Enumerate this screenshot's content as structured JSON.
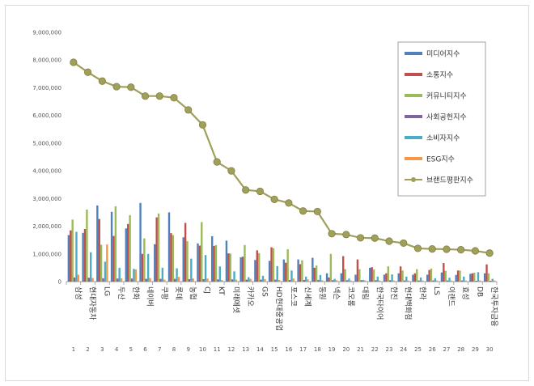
{
  "chart_data": {
    "type": "bar",
    "ylim": [
      0,
      9000000
    ],
    "yticks": [
      "9,000,000",
      "8,000,000",
      "7,000,000",
      "6,000,000",
      "5,000,000",
      "4,000,000",
      "3,000,000",
      "2,000,000",
      "1,000,000",
      "0"
    ],
    "grid": false,
    "legend_position": "top-right",
    "categories": [
      "삼성",
      "현대자동차",
      "LG",
      "두산",
      "한화",
      "네이버",
      "쿠팡",
      "롯데",
      "농협",
      "CJ",
      "KT",
      "미래에셋",
      "카카오",
      "GS",
      "HD현대중공업",
      "포스코",
      "신세계",
      "동원",
      "넥슨",
      "코오롱",
      "대림",
      "한국타이어",
      "한진",
      "현대백화점",
      "한라",
      "LS",
      "이랜드",
      "효성",
      "DB",
      "한국투자금융"
    ],
    "ranks": [
      "1",
      "2",
      "3",
      "4",
      "5",
      "6",
      "7",
      "8",
      "9",
      "10",
      "11",
      "12",
      "13",
      "14",
      "15",
      "16",
      "17",
      "18",
      "19",
      "20",
      "21",
      "22",
      "23",
      "24",
      "25",
      "26",
      "27",
      "28",
      "29",
      "30"
    ],
    "series": [
      {
        "name": "미디어지수",
        "color": "#4f81bd",
        "values": [
          1680000,
          1760000,
          2750000,
          2520000,
          1920000,
          2840000,
          1350000,
          2500000,
          1600000,
          1380000,
          1640000,
          1480000,
          880000,
          780000,
          750000,
          800000,
          800000,
          860000,
          300000,
          300000,
          250000,
          500000,
          250000,
          300000,
          250000,
          250000,
          330000,
          240000,
          280000,
          300000
        ]
      },
      {
        "name": "소통지수",
        "color": "#c0504d",
        "values": [
          1850000,
          1900000,
          2260000,
          1650000,
          2080000,
          1000000,
          2320000,
          1750000,
          2120000,
          1300000,
          1290000,
          1020000,
          900000,
          1130000,
          1240000,
          680000,
          630000,
          500000,
          150000,
          920000,
          800000,
          520000,
          300000,
          550000,
          300000,
          420000,
          670000,
          400000,
          300000,
          620000
        ]
      },
      {
        "name": "커뮤니티지수",
        "color": "#9bbb59",
        "values": [
          2240000,
          2600000,
          1330000,
          2720000,
          2400000,
          1560000,
          2460000,
          1680000,
          1460000,
          2150000,
          1320000,
          1010000,
          1320000,
          1030000,
          1210000,
          1170000,
          770000,
          580000,
          1000000,
          450000,
          450000,
          440000,
          550000,
          400000,
          450000,
          470000,
          390000,
          400000,
          320000,
          300000
        ]
      },
      {
        "name": "사회공헌지수",
        "color": "#8064a2",
        "values": [
          150000,
          140000,
          120000,
          110000,
          110000,
          100000,
          100000,
          100000,
          90000,
          90000,
          80000,
          80000,
          70000,
          70000,
          70000,
          60000,
          60000,
          60000,
          50000,
          50000,
          50000,
          50000,
          50000,
          40000,
          40000,
          40000,
          40000,
          40000,
          30000,
          30000
        ]
      },
      {
        "name": "소비자지수",
        "color": "#4bacc6",
        "values": [
          1800000,
          1060000,
          720000,
          500000,
          460000,
          1000000,
          500000,
          480000,
          830000,
          960000,
          550000,
          370000,
          160000,
          210000,
          560000,
          400000,
          180000,
          240000,
          100000,
          110000,
          60000,
          180000,
          260000,
          180000,
          150000,
          120000,
          140000,
          180000,
          340000,
          100000
        ]
      },
      {
        "name": "ESG지수",
        "color": "#f79646",
        "values": [
          250000,
          130000,
          1340000,
          120000,
          440000,
          130000,
          70000,
          170000,
          110000,
          110000,
          60000,
          70000,
          100000,
          90000,
          60000,
          110000,
          80000,
          50000,
          50000,
          40000,
          40000,
          40000,
          40000,
          40000,
          40000,
          40000,
          40000,
          40000,
          40000,
          40000
        ]
      },
      {
        "name": "브랜드평판지수",
        "color": "#a0a05a",
        "type": "line",
        "values": [
          7920000,
          7560000,
          7240000,
          7040000,
          7020000,
          6700000,
          6700000,
          6640000,
          6200000,
          5660000,
          4320000,
          4000000,
          3310000,
          3260000,
          2970000,
          2840000,
          2550000,
          2530000,
          1730000,
          1700000,
          1580000,
          1570000,
          1460000,
          1390000,
          1200000,
          1180000,
          1170000,
          1150000,
          1110000,
          1030000
        ]
      }
    ]
  }
}
